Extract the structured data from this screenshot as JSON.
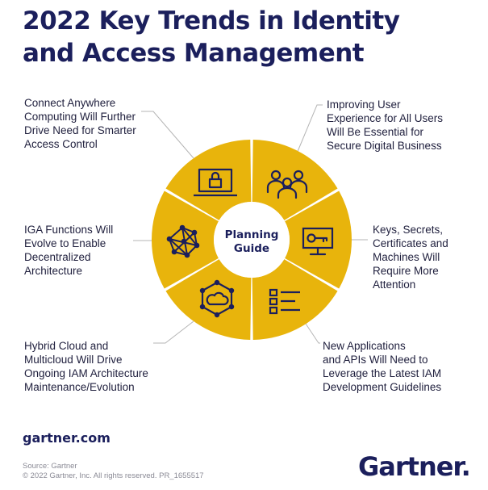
{
  "title": {
    "line1": "2022 Key Trends in Identity",
    "line2": "and Access Management"
  },
  "center": {
    "line1": "Planning",
    "line2": "Guide"
  },
  "trends": [
    {
      "lines": [
        "Connect Anywhere",
        "Computing Will Further",
        "Drive Need for Smarter",
        "Access Control"
      ],
      "icon": "laptop-lock-icon"
    },
    {
      "lines": [
        "Improving User",
        "Experience for All Users",
        "Will Be Essential for",
        "Secure Digital Business"
      ],
      "icon": "people-group-icon"
    },
    {
      "lines": [
        "Keys, Secrets,",
        "Certificates and",
        "Machines Will",
        "Require More",
        "Attention"
      ],
      "icon": "monitor-key-icon"
    },
    {
      "lines": [
        "New Applications",
        "and APIs Will Need to",
        "Leverage the Latest IAM",
        "Development Guidelines"
      ],
      "icon": "checklist-icon"
    },
    {
      "lines": [
        "Hybrid Cloud and",
        "Multicloud Will Drive",
        "Ongoing IAM Architecture",
        "Maintenance/Evolution"
      ],
      "icon": "cloud-network-icon"
    },
    {
      "lines": [
        "IGA Functions Will",
        "Evolve to Enable",
        "Decentralized",
        "Architecture"
      ],
      "icon": "mesh-network-icon"
    }
  ],
  "footer": {
    "site": "gartner.com",
    "source": "Source: Gartner",
    "copyright": "© 2022 Gartner, Inc. All rights reserved. PR_1655517",
    "logo": "Gartner"
  },
  "colors": {
    "navy": "#1b1f5c",
    "gold": "#e8b40c",
    "line": "#b5b5b5"
  }
}
